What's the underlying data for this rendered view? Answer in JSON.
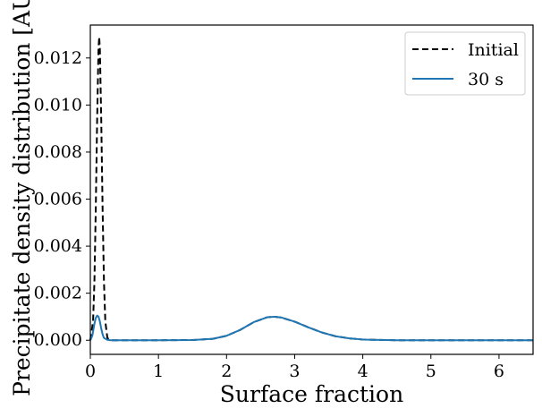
{
  "chart_data": {
    "type": "line",
    "xlabel": "Surface fraction",
    "ylabel": "Precipitate density distribution [AU]",
    "xlim": [
      0,
      6.5
    ],
    "ylim": [
      -0.0006,
      0.0134
    ],
    "xticks": [
      0,
      1,
      2,
      3,
      4,
      5,
      6
    ],
    "xtick_labels": [
      "0",
      "1",
      "2",
      "3",
      "4",
      "5",
      "6"
    ],
    "yticks": [
      0.0,
      0.002,
      0.004,
      0.006,
      0.008,
      0.01,
      0.012
    ],
    "ytick_labels": [
      "0.000",
      "0.002",
      "0.004",
      "0.006",
      "0.008",
      "0.010",
      "0.012"
    ],
    "grid": false,
    "legend_position": "top-right",
    "series": [
      {
        "name": "Initial",
        "color": "#000000",
        "style": "dashed",
        "x": [
          0,
          0.04,
          0.06,
          0.08,
          0.1,
          0.12,
          0.13,
          0.14,
          0.16,
          0.18,
          0.2,
          0.22,
          0.25,
          0.3,
          0.5,
          1.0,
          1.5,
          1.8,
          2.0,
          2.2,
          2.4,
          2.6,
          2.7,
          2.8,
          3.0,
          3.2,
          3.4,
          3.6,
          3.8,
          4.0,
          4.5,
          5.0,
          5.5,
          6.0,
          6.5
        ],
        "y": [
          0,
          0.0008,
          0.0025,
          0.0056,
          0.0094,
          0.0124,
          0.0129,
          0.0124,
          0.0094,
          0.0056,
          0.0025,
          0.0008,
          0.0001,
          0,
          0,
          0,
          1e-05,
          6e-05,
          0.00019,
          0.00044,
          0.00077,
          0.00098,
          0.001,
          0.00097,
          0.00079,
          0.00055,
          0.00033,
          0.00017,
          8e-05,
          3e-05,
          0,
          0,
          0,
          0,
          0
        ]
      },
      {
        "name": "30 s",
        "color": "#1f77b4",
        "style": "solid",
        "x": [
          0,
          0.03,
          0.06,
          0.08,
          0.1,
          0.12,
          0.14,
          0.16,
          0.18,
          0.2,
          0.25,
          0.3,
          0.5,
          1.0,
          1.5,
          1.8,
          2.0,
          2.2,
          2.4,
          2.6,
          2.7,
          2.8,
          3.0,
          3.2,
          3.4,
          3.6,
          3.8,
          4.0,
          4.5,
          5.0,
          5.5,
          6.0,
          6.5
        ],
        "y": [
          0,
          0.0002,
          0.0007,
          0.00095,
          0.00105,
          0.001,
          0.0008,
          0.0005,
          0.00025,
          0.0001,
          2e-05,
          0,
          0,
          0,
          1e-05,
          6e-05,
          0.00019,
          0.00044,
          0.00077,
          0.00098,
          0.001,
          0.00097,
          0.00079,
          0.00055,
          0.00033,
          0.00017,
          8e-05,
          3e-05,
          0,
          0,
          0,
          0,
          0
        ]
      }
    ]
  }
}
